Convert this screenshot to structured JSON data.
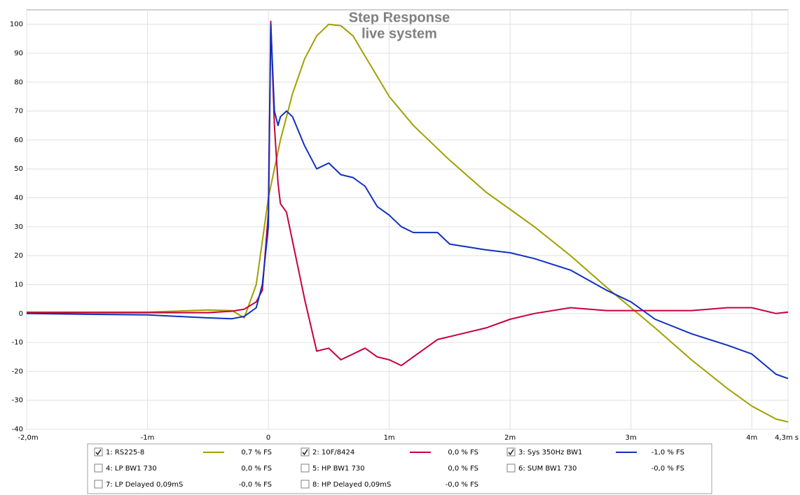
{
  "chart_data": {
    "type": "line",
    "title": "Step Response",
    "subtitle": "live system",
    "x": [
      -2,
      -1,
      -0.5,
      -0.3,
      -0.2,
      -0.1,
      -0.05,
      0,
      0.02,
      0.05,
      0.08,
      0.1,
      0.15,
      0.2,
      0.3,
      0.4,
      0.5,
      0.6,
      0.7,
      0.8,
      0.9,
      1,
      1.1,
      1.2,
      1.4,
      1.5,
      1.8,
      2,
      2.2,
      2.5,
      2.8,
      3,
      3.2,
      3.5,
      3.8,
      4,
      4.2,
      4.3
    ],
    "xlim": [
      -2,
      4.3
    ],
    "xticks": [
      {
        "value": -2,
        "label": "-2,0m"
      },
      {
        "value": -1,
        "label": "-1m"
      },
      0,
      {
        "value": 1,
        "label": "1m"
      },
      {
        "value": 2,
        "label": "2m"
      },
      {
        "value": 3,
        "label": "3m"
      },
      {
        "value": 4,
        "label": "4m"
      },
      {
        "value": 4.3,
        "label": "4,3m s"
      }
    ],
    "ylim": [
      -40,
      105
    ],
    "yticks": [
      -40,
      -30,
      -20,
      -10,
      0,
      10,
      20,
      30,
      40,
      50,
      60,
      70,
      80,
      90,
      100
    ],
    "grid": true,
    "series": [
      {
        "name": "1: RS225-8",
        "color": "#a0a000",
        "checked": true,
        "reading": "0,7 % FS",
        "values": [
          0.5,
          0.5,
          1.2,
          1,
          -1.5,
          10,
          25,
          40,
          44,
          50,
          56,
          60,
          68,
          76,
          88,
          96,
          100,
          99.5,
          96,
          89,
          82,
          75,
          70,
          65,
          57,
          53,
          42,
          36,
          30,
          20,
          9,
          2,
          -5,
          -16,
          -26,
          -32,
          -36.5,
          -37.5
        ]
      },
      {
        "name": "2: 10F/8424",
        "color": "#c8003c",
        "checked": true,
        "reading": "0,0 % FS",
        "values": [
          0.3,
          0.3,
          0.3,
          0.8,
          1.5,
          4,
          8,
          35,
          101,
          65,
          45,
          38,
          35,
          25,
          5,
          -13,
          -12,
          -16,
          -14,
          -12,
          -15,
          -16,
          -18,
          -15,
          -9,
          -8,
          -5,
          -2,
          0,
          2,
          1,
          1,
          1,
          1,
          2,
          2,
          0,
          0.5
        ]
      },
      {
        "name": "3: Sys 350Hz BW1",
        "color": "#1030c0",
        "checked": true,
        "reading": "-1,0 % FS",
        "values": [
          0,
          -0.5,
          -1.5,
          -1.8,
          -1,
          2,
          10,
          30,
          100,
          70,
          65,
          68,
          70,
          68,
          58,
          50,
          52,
          48,
          47,
          44,
          37,
          34,
          30,
          28,
          28,
          24,
          22,
          21,
          19,
          15,
          8,
          4,
          -2,
          -7,
          -11,
          -14,
          -21,
          -22.5
        ]
      },
      {
        "name": "4: LP BW1 730",
        "color": "#a0a000",
        "checked": false,
        "reading": "0,0 % FS"
      },
      {
        "name": "5: HP BW1 730",
        "color": "#c8003c",
        "checked": false,
        "reading": "0,0 % FS"
      },
      {
        "name": "6: SUM BW1 730",
        "color": "#1030c0",
        "checked": false,
        "reading": "-0,0 % FS"
      },
      {
        "name": "7: LP Delayed 0,09mS",
        "color": "#c8003c",
        "checked": false,
        "reading": "-0,0 % FS"
      },
      {
        "name": "8: HP Delayed 0,09mS",
        "color": "#a0a000",
        "checked": false,
        "reading": "-0,0 % FS"
      }
    ]
  }
}
